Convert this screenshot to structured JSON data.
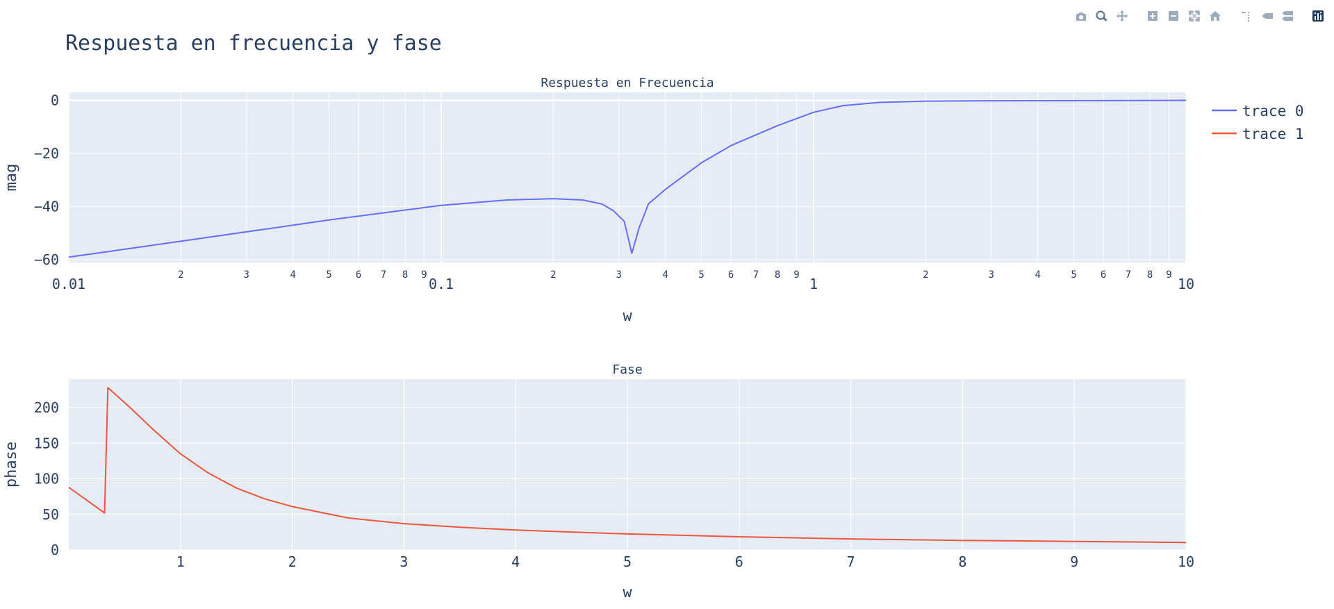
{
  "figure": {
    "title": "Respuesta en frecuencia y fase"
  },
  "colors": {
    "plot_bg": "#E5ECF6",
    "grid": "#ffffff",
    "text": "#2a3f5f",
    "trace0": "#636EFA",
    "trace1": "#EF553B"
  },
  "modebar": [
    {
      "name": "camera-icon"
    },
    {
      "name": "zoom-icon",
      "active": true
    },
    {
      "name": "pan-icon"
    },
    {
      "name": "zoom-in-icon"
    },
    {
      "name": "zoom-out-icon"
    },
    {
      "name": "autoscale-icon"
    },
    {
      "name": "home-icon"
    },
    {
      "name": "spike-lines-icon"
    },
    {
      "name": "hover-closest-icon"
    },
    {
      "name": "hover-compare-icon"
    },
    {
      "name": "plotly-logo-icon"
    }
  ],
  "chart_data": [
    {
      "type": "line",
      "title": "Respuesta en Frecuencia",
      "xlabel": "w",
      "ylabel": "mag",
      "xscale": "log",
      "xlim": [
        0.01,
        10
      ],
      "ylim": [
        -61,
        3
      ],
      "yticks": [
        0,
        -20,
        -40,
        -60
      ],
      "x_major_ticks": [
        {
          "v": 0.01,
          "t": "0.01"
        },
        {
          "v": 0.1,
          "t": "0.1"
        },
        {
          "v": 1,
          "t": "1"
        },
        {
          "v": 10,
          "t": "10"
        }
      ],
      "x_minor_labels": [
        "2",
        "3",
        "4",
        "5",
        "6",
        "7",
        "8",
        "9"
      ],
      "series": [
        {
          "name": "trace 0",
          "color": "#636EFA",
          "x": [
            0.01,
            0.02,
            0.05,
            0.1,
            0.15,
            0.2,
            0.24,
            0.27,
            0.29,
            0.31,
            0.325,
            0.34,
            0.36,
            0.4,
            0.5,
            0.6,
            0.8,
            1.0,
            1.2,
            1.5,
            2.0,
            3.0,
            5.0,
            10.0
          ],
          "y": [
            -59,
            -53,
            -45,
            -39.5,
            -37.5,
            -37,
            -37.5,
            -39,
            -41.5,
            -45.5,
            -57.5,
            -48,
            -39,
            -33.5,
            -23.5,
            -17,
            -9.5,
            -4.5,
            -2,
            -0.8,
            -0.3,
            -0.15,
            -0.1,
            0
          ]
        }
      ]
    },
    {
      "type": "line",
      "title": "Fase",
      "xlabel": "w",
      "ylabel": "phase",
      "xscale": "linear",
      "xlim": [
        0,
        10
      ],
      "ylim": [
        0,
        240
      ],
      "yticks": [
        0,
        50,
        100,
        150,
        200
      ],
      "xticks": [
        1,
        2,
        3,
        4,
        5,
        6,
        7,
        8,
        9,
        10
      ],
      "series": [
        {
          "name": "trace 1",
          "color": "#EF553B",
          "x": [
            0,
            0.32,
            0.35,
            0.55,
            0.75,
            1.0,
            1.25,
            1.5,
            1.75,
            2.0,
            2.5,
            3.0,
            3.5,
            4.0,
            5.0,
            6.0,
            7.0,
            8.0,
            9.0,
            10.0
          ],
          "y": [
            88,
            52,
            228,
            200,
            170,
            135,
            108,
            87,
            72,
            61,
            45,
            37,
            32,
            28,
            22.5,
            18.5,
            15.5,
            13.5,
            12,
            10.5
          ]
        }
      ]
    }
  ]
}
